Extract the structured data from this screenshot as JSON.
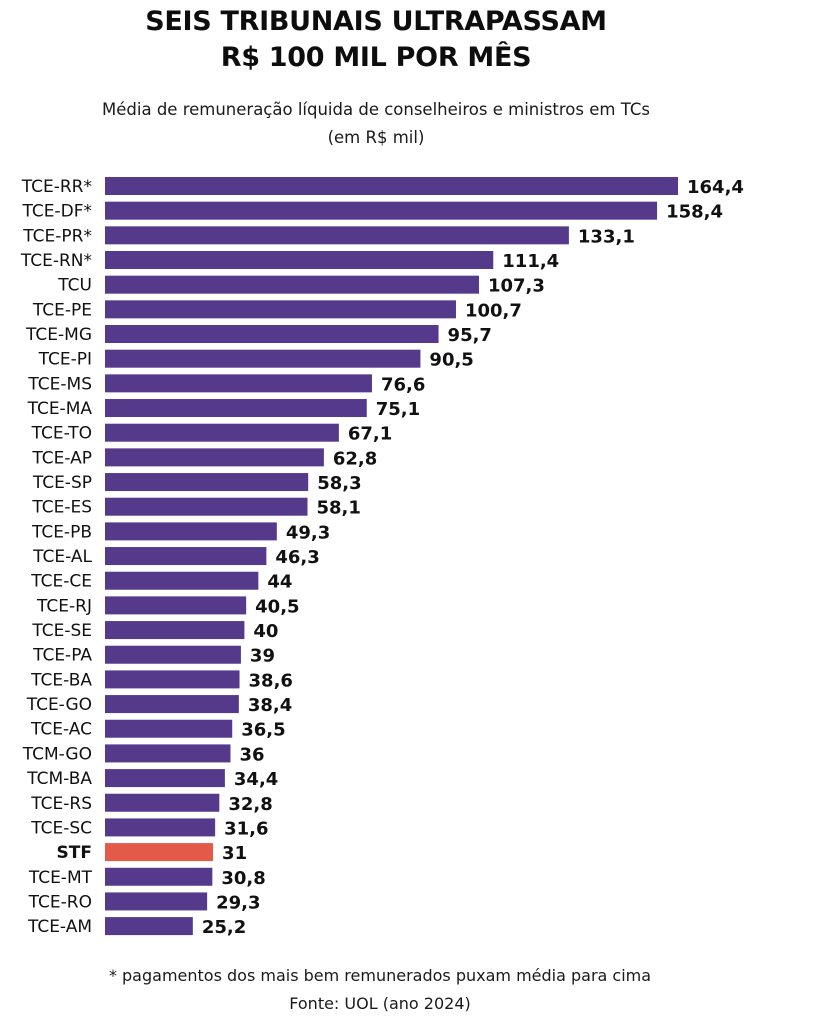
{
  "chart_data": {
    "type": "bar",
    "orientation": "horizontal",
    "title": "SEIS TRIBUNAIS ULTRAPASSAM R$ 100 MIL POR MÊS",
    "title_lines": [
      "SEIS TRIBUNAIS ULTRAPASSAM",
      "R$ 100 MIL POR MÊS"
    ],
    "subtitle_lines": [
      "Média de remuneração líquida de conselheiros e ministros em TCs",
      "(em R$ mil)"
    ],
    "xlabel": "",
    "ylabel": "",
    "xlim": [
      0,
      164.4
    ],
    "grid": false,
    "legend": "none",
    "colors": {
      "default": "#553a8c",
      "highlight": "#e35a48",
      "label_default": "#111111"
    },
    "categories": [
      "TCE-RR*",
      "TCE-DF*",
      "TCE-PR*",
      "TCE-RN*",
      "TCU",
      "TCE-PE",
      "TCE-MG",
      "TCE-PI",
      "TCE-MS",
      "TCE-MA",
      "TCE-TO",
      "TCE-AP",
      "TCE-SP",
      "TCE-ES",
      "TCE-PB",
      "TCE-AL",
      "TCE-CE",
      "TCE-RJ",
      "TCE-SE",
      "TCE-PA",
      "TCE-BA",
      "TCE-GO",
      "TCE-AC",
      "TCM-GO",
      "TCM-BA",
      "TCE-RS",
      "TCE-SC",
      "STF",
      "TCE-MT",
      "TCE-RO",
      "TCE-AM"
    ],
    "values": [
      164.4,
      158.4,
      133.1,
      111.4,
      107.3,
      100.7,
      95.7,
      90.5,
      76.6,
      75.1,
      67.1,
      62.8,
      58.3,
      58.1,
      49.3,
      46.3,
      44,
      40.5,
      40,
      39,
      38.6,
      38.4,
      36.5,
      36,
      34.4,
      32.8,
      31.6,
      31,
      30.8,
      29.3,
      25.2
    ],
    "value_labels": [
      "164,4",
      "158,4",
      "133,1",
      "111,4",
      "107,3",
      "100,7",
      "95,7",
      "90,5",
      "76,6",
      "75,1",
      "67,1",
      "62,8",
      "58,3",
      "58,1",
      "49,3",
      "46,3",
      "44",
      "40,5",
      "40",
      "39",
      "38,6",
      "38,4",
      "36,5",
      "36",
      "34,4",
      "32,8",
      "31,6",
      "31",
      "30,8",
      "29,3",
      "25,2"
    ],
    "highlighted": [
      "STF"
    ],
    "footnotes": [
      "* pagamentos dos mais bem remunerados puxam média para cima",
      "Fonte: UOL (ano 2024)"
    ]
  }
}
